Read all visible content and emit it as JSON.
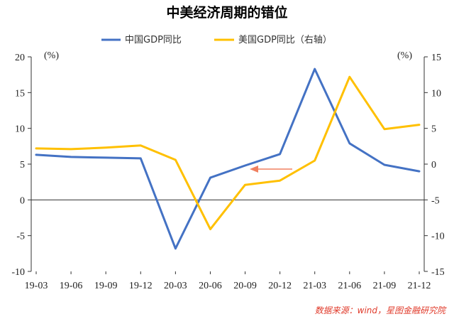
{
  "chart_data": {
    "type": "line",
    "title": "中美经济周期的错位",
    "categories": [
      "19-03",
      "19-06",
      "19-09",
      "19-12",
      "20-03",
      "20-06",
      "20-09",
      "20-12",
      "21-03",
      "21-06",
      "21-09",
      "21-12"
    ],
    "series": [
      {
        "name": "中国GDP同比",
        "axis": "left",
        "color": "#4472c4",
        "values": [
          6.3,
          6.0,
          5.9,
          5.8,
          -6.8,
          3.1,
          4.8,
          6.4,
          18.3,
          7.9,
          4.9,
          4.0
        ]
      },
      {
        "name": "美国GDP同比（右轴）",
        "axis": "right",
        "color": "#ffc000",
        "values": [
          2.2,
          2.1,
          2.3,
          2.6,
          0.6,
          -9.1,
          -2.9,
          -2.3,
          0.5,
          12.2,
          4.9,
          5.5
        ]
      }
    ],
    "y_left": {
      "unit": "(%)",
      "ylim": [
        -10,
        20
      ],
      "ticks": [
        -10,
        -5,
        0,
        5,
        10,
        15,
        20
      ]
    },
    "y_right": {
      "unit": "(%)",
      "ylim": [
        -15,
        15
      ],
      "ticks": [
        -15,
        -10,
        -5,
        0,
        5,
        10,
        15
      ]
    },
    "annotation": {
      "type": "arrow",
      "color": "#f08060"
    },
    "grid": false,
    "legend_position": "top",
    "source": "数据来源：wind，星图金融研究院"
  }
}
